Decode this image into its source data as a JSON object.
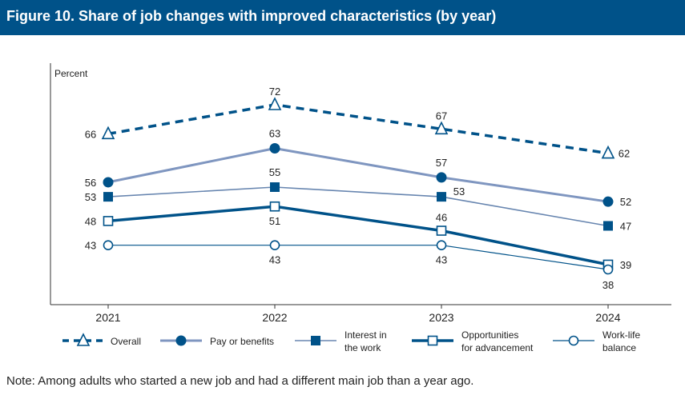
{
  "figure_title": "Figure 10. Share of job changes with improved characteristics (by year)",
  "note": "Note: Among adults who started a new job and had a different main job than a year ago.",
  "colors": {
    "header_bg": "#005289",
    "dark_blue": "#005289",
    "medium_blue": "#7f96c0",
    "steel_blue": "#6886b0",
    "axis": "#333333"
  },
  "chart_data": {
    "type": "line",
    "title": "Share of job changes with improved characteristics (by year)",
    "ylabel": "Percent",
    "xlabel": "",
    "categories": [
      "2021",
      "2022",
      "2023",
      "2024"
    ],
    "ylim": [
      30,
      80
    ],
    "grid": false,
    "legend_position": "bottom",
    "series": [
      {
        "name": "Overall",
        "legend_label": [
          "Overall"
        ],
        "values": [
          66,
          72,
          67,
          62
        ],
        "marker": "triangle-open",
        "line": "dashed",
        "color": "#005289"
      },
      {
        "name": "Pay or benefits",
        "legend_label": [
          "Pay or benefits"
        ],
        "values": [
          56,
          63,
          57,
          52
        ],
        "marker": "circle-filled",
        "line": "solid",
        "color": "#7f96c0"
      },
      {
        "name": "Interest in the work",
        "legend_label": [
          "Interest in",
          "the work"
        ],
        "values": [
          53,
          55,
          53,
          47
        ],
        "marker": "square-filled",
        "line": "solid",
        "color": "#6886b0"
      },
      {
        "name": "Opportunities for advancement",
        "legend_label": [
          "Opportunities",
          "for advancement"
        ],
        "values": [
          48,
          51,
          46,
          39
        ],
        "marker": "square-open",
        "line": "solid",
        "color": "#005289"
      },
      {
        "name": "Work-life balance",
        "legend_label": [
          "Work-life",
          "balance"
        ],
        "values": [
          43,
          43,
          43,
          38
        ],
        "marker": "circle-open",
        "line": "solid",
        "color": "#005289"
      }
    ]
  }
}
